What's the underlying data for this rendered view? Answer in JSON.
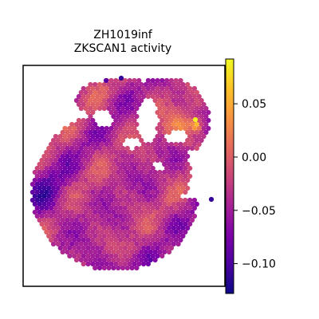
{
  "chart_data": {
    "type": "heatmap",
    "subtype": "spatial hexagonal spot map",
    "title": "ZH1019inf",
    "subtitle": "ZKSCAN1 activity",
    "xlabel": "",
    "ylabel": "",
    "colormap": "plasma",
    "colorbar": {
      "range": [
        -0.128,
        0.092
      ],
      "ticks": [
        0.05,
        0.0,
        -0.05,
        -0.1
      ],
      "tick_labels": [
        "0.05",
        "0.00",
        "−0.05",
        "−0.10"
      ]
    },
    "value_summary": {
      "min": -0.128,
      "max": 0.092,
      "typical": -0.03,
      "highest_region": "upper-right lobe",
      "lowest_region": "left and lower edge of tissue"
    },
    "grid": false,
    "axes_ticks_visible": false
  },
  "colors": {
    "frame": "#000000",
    "background": "#ffffff"
  }
}
